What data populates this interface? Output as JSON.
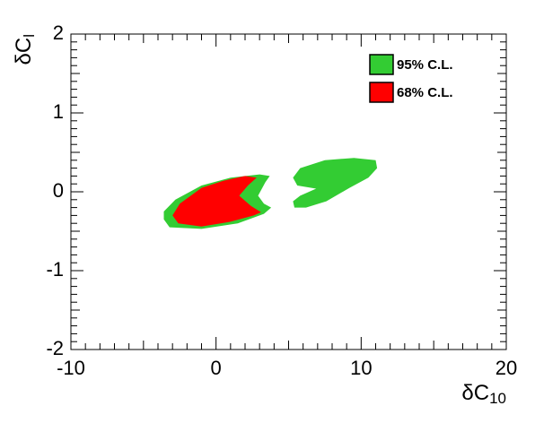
{
  "chart_data": {
    "type": "contour",
    "xlabel": {
      "base": "δC",
      "sub": "10"
    },
    "ylabel": {
      "base": "δC",
      "sub": "l"
    },
    "xlim": [
      -10,
      20
    ],
    "xticks": [
      -10,
      0,
      10,
      20
    ],
    "ylim": [
      -2,
      2
    ],
    "yticks": [
      -2,
      -1,
      0,
      1,
      2
    ],
    "legend": "top-right",
    "series": [
      {
        "name": "95% C.L.",
        "color": "#33cc33",
        "regions": [
          {
            "x": [
              -3.6,
              -3.2,
              -1,
              1.5,
              3.3,
              3.8,
              3.3,
              2.9,
              3.4,
              3.7,
              3,
              1,
              -1,
              -2.8,
              -3.6
            ],
            "y": [
              -0.35,
              -0.45,
              -0.47,
              -0.4,
              -0.28,
              -0.2,
              -0.15,
              -0.05,
              0.12,
              0.2,
              0.22,
              0.18,
              0.08,
              -0.1,
              -0.25
            ]
          },
          {
            "x": [
              5.4,
              6.2,
              7.6,
              9.2,
              10.5,
              11.1,
              11,
              9.5,
              7.5,
              5.8,
              5.3,
              5.6,
              6.9,
              5.8,
              5.3
            ],
            "y": [
              -0.2,
              -0.2,
              -0.12,
              0.05,
              0.18,
              0.3,
              0.4,
              0.43,
              0.4,
              0.3,
              0.18,
              0.08,
              0.04,
              -0.05,
              -0.12
            ]
          }
        ]
      },
      {
        "name": "68% C.L.",
        "color": "#ff0000",
        "regions": [
          {
            "x": [
              -3,
              -2.6,
              -1,
              1,
              2.6,
              3.1,
              2.4,
              1.6,
              2.2,
              2.8,
              2,
              0.5,
              -1,
              -2.5
            ],
            "y": [
              -0.3,
              -0.4,
              -0.44,
              -0.38,
              -0.3,
              -0.26,
              -0.18,
              -0.05,
              0.08,
              0.18,
              0.2,
              0.14,
              0.05,
              -0.15
            ]
          }
        ]
      }
    ]
  }
}
